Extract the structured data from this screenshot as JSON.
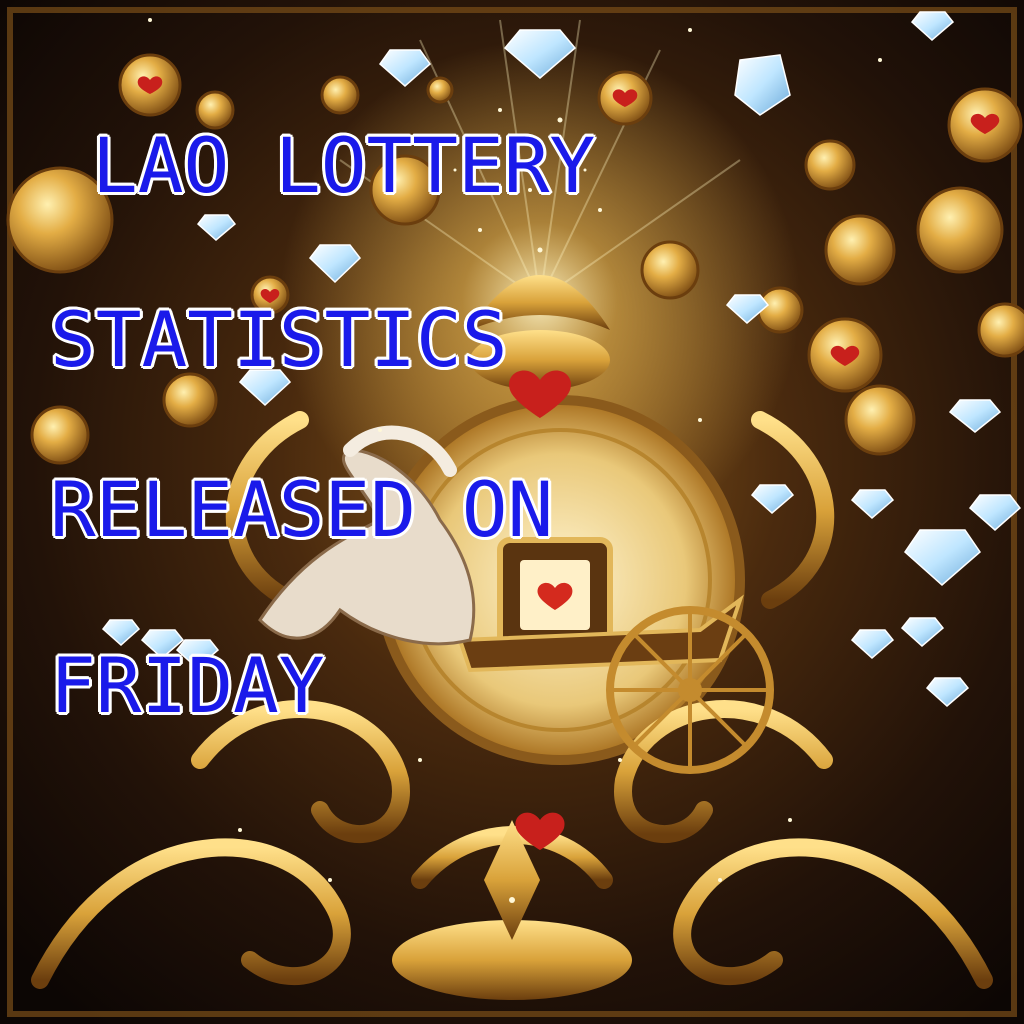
{
  "headline": {
    "lines": [
      "LAO LOTTERY",
      "STATISTICS",
      "RELEASED ON",
      "FRIDAY"
    ],
    "text_color": "#1a1aea",
    "outline_color": "#ffffff"
  },
  "artwork": {
    "background_color": "#120a06",
    "gold_color": "#d9a23a",
    "gem_color": "#bfe6ff",
    "heart_color": "#c8201c",
    "elements": [
      "gold-coin",
      "diamond",
      "horse-drawn-carriage",
      "ornate-scroll-frame",
      "sparkle-burst",
      "heart-emblem"
    ]
  }
}
